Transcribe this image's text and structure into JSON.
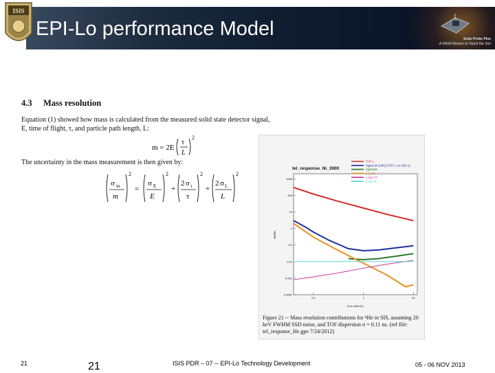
{
  "slide": {
    "title": "EPI-Lo performance Model",
    "brand_line1": "Solar Probe Plus",
    "brand_line2": "A NASA Mission to Touch the Sun",
    "logo_text": "ISIS"
  },
  "document": {
    "section_number": "4.3",
    "section_title": "Mass resolution",
    "para1_line1": "Equation (1) showed how mass is calculated from the measured solid state detector signal,",
    "para1_line2": "E, time of flight, τ, and particle path length, L:",
    "para2": "The uncertainty in the mass measurement is then given by:"
  },
  "equations": {
    "eq1_lhs": "m = 2E",
    "eq1_num": "τ",
    "eq1_den": "L",
    "eq1_exp": "2",
    "eq2_terms": [
      "σ",
      "m",
      "σ",
      "E",
      "σ",
      "τ",
      "σ",
      "L"
    ],
    "eq2_sub": [
      "m",
      "",
      "E",
      "",
      "τ",
      "",
      "L",
      ""
    ],
    "eq2_exp": "2"
  },
  "figure": {
    "caption_line1": "Figure 21 -- Mass resolution contributions for ⁴He in SIS, assuming 20",
    "caption_line2": "keV FWHM SSD noise, and TOF dispersion σ = 0.11 ns.  (ref file:",
    "caption_line3": "tel_response_He.gpe 7/24/2012)"
  },
  "chart_data": {
    "type": "line",
    "title": "tel_response_Ni_3000",
    "xlabel": "Ecm (MeV/n)",
    "ylabel": "σm/m",
    "x_scale": "log",
    "y_scale": "log",
    "xlim": [
      0.04,
      12
    ],
    "ylim": [
      0.0001,
      2000
    ],
    "x_ticks": [
      "0.1",
      "1",
      "10"
    ],
    "y_ticks": [
      "1000",
      "100",
      "10",
      "1",
      "0.1",
      "0.01",
      "0.001",
      "0.0001"
    ],
    "legend_position": "top-right",
    "grid": false,
    "series": [
      {
        "name": "TOF-1",
        "color": "#d42a2a",
        "x": [
          0.04,
          0.1,
          0.3,
          1,
          3,
          10
        ],
        "y": [
          300,
          120,
          45,
          17,
          7,
          3
        ]
      },
      {
        "name": "Sigma M (AMU) (TOF-1 vs SSD-1)",
        "color": "#1a2f9a",
        "x": [
          0.04,
          0.07,
          0.1,
          0.2,
          0.5,
          1,
          2,
          5,
          10
        ],
        "y": [
          3,
          1.2,
          0.6,
          0.2,
          0.06,
          0.045,
          0.05,
          0.07,
          0.09
        ]
      },
      {
        "name": "Sigma/M",
        "color": "#2a7a2a",
        "x": [
          0.5,
          1,
          2,
          5,
          10
        ],
        "y": [
          0.015,
          0.013,
          0.015,
          0.022,
          0.03
        ]
      },
      {
        "name": "Sig E/E",
        "color": "#e89020",
        "x": [
          0.04,
          0.1,
          0.3,
          1,
          3,
          7,
          10
        ],
        "y": [
          2,
          0.3,
          0.05,
          0.008,
          0.0015,
          0.0003,
          0.0004
        ]
      },
      {
        "name": "2 Sig T/T",
        "color": "#c030a0",
        "x": [
          0.04,
          0.1,
          0.3,
          1,
          3,
          10
        ],
        "y": [
          0.0008,
          0.0012,
          0.002,
          0.004,
          0.007,
          0.012
        ]
      },
      {
        "name": "2 Sig L/L",
        "color": "#40d0d0",
        "x": [
          0.04,
          10
        ],
        "y": [
          0.01,
          0.01
        ]
      }
    ]
  },
  "footer": {
    "slide_number_small": "21",
    "slide_number_big": "21",
    "center_text": "ISIS PDR – 07 -- EPI-Lo Technology Development",
    "date": "05 - 06 NOV 2013"
  }
}
